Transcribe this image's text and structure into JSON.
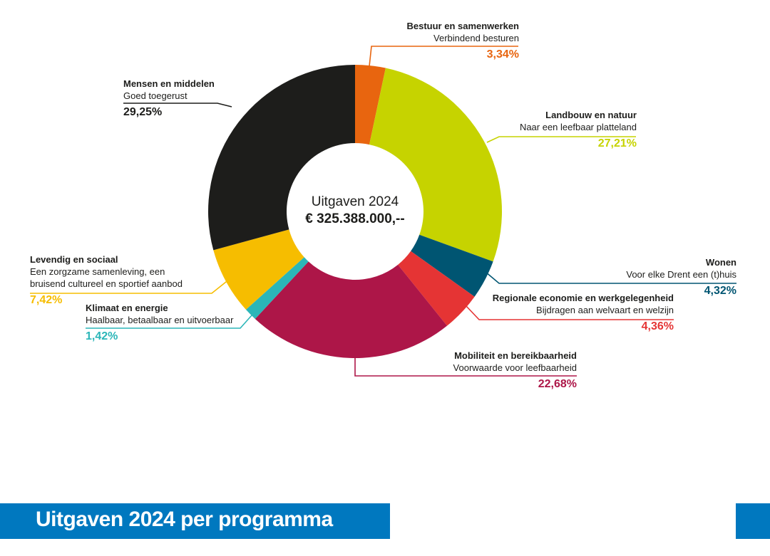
{
  "chart_data": {
    "type": "pie",
    "variant": "donut",
    "title": "Uitgaven 2024 per programma",
    "center_title": "Uitgaven 2024",
    "center_value": "€ 325.388.000,--",
    "start_angle_deg": 0,
    "direction": "clockwise",
    "slices": [
      {
        "name": "Bestuur en samenwerken",
        "subtitle": "Verbindend besturen",
        "value": 3.34,
        "label": "3,34%",
        "color": "#e8650f"
      },
      {
        "name": "Landbouw en natuur",
        "subtitle": "Naar een leefbaar platteland",
        "value": 27.21,
        "label": "27,21%",
        "color": "#c6d300"
      },
      {
        "name": "Wonen",
        "subtitle": "Voor elke Drent een (t)huis",
        "value": 4.32,
        "label": "4,32%",
        "color": "#005572"
      },
      {
        "name": "Regionale economie en werkgelegenheid",
        "subtitle": "Bijdragen aan welvaart en welzijn",
        "value": 4.36,
        "label": "4,36%",
        "color": "#e53434"
      },
      {
        "name": "Mobiliteit en bereikbaarheid",
        "subtitle": "Voorwaarde voor leefbaarheid",
        "value": 22.68,
        "label": "22,68%",
        "color": "#ad1648"
      },
      {
        "name": "Klimaat en energie",
        "subtitle": "Haalbaar, betaalbaar en uitvoerbaar",
        "value": 1.42,
        "label": "1,42%",
        "color": "#2bb6b8"
      },
      {
        "name": "Levendig en sociaal",
        "subtitle": "Een zorgzame samenleving, een bruisend cultureel en sportief aanbod",
        "subtitle_lines": [
          "Een zorgzame samenleving, een",
          "bruisend cultureel en sportief aanbod"
        ],
        "value": 7.42,
        "label": "7,42%",
        "color": "#f6bd00"
      },
      {
        "name": "Mensen en middelen",
        "subtitle": "Goed toegerust",
        "value": 29.25,
        "label": "29,25%",
        "color": "#1d1d1b"
      }
    ]
  },
  "banner": {
    "title": "Uitgaven 2024 per programma",
    "color": "#0078bf"
  }
}
